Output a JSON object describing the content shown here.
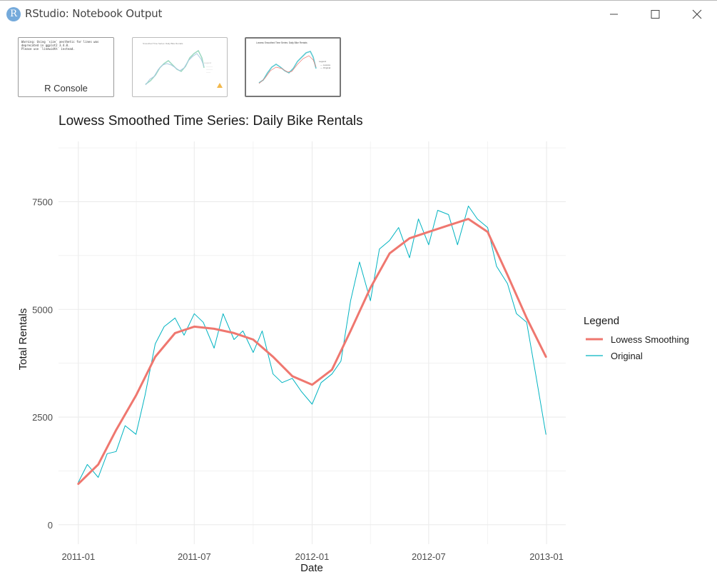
{
  "window": {
    "app_icon_letter": "R",
    "title": "RStudio: Notebook Output"
  },
  "thumbnails": [
    {
      "kind": "console",
      "label": "R Console",
      "text": "Warning: Using `size` aesthetic for lines was\ndeprecated in ggplot2 3.4.0.\nPlease use `linewidth` instead."
    },
    {
      "kind": "plot",
      "title": "Smoothed Time Series: Daily Bike Rentals",
      "warning_icon": "warning-icon"
    },
    {
      "kind": "plot",
      "title": "Lowess Smoothed Time Series: Daily Bike Rentals",
      "selected": true
    }
  ],
  "colors": {
    "original": "#00b3c1",
    "lowess": "#ef776f",
    "grid": "#ebebeb",
    "text": "#1a1a1a",
    "tick": "#4d4d4d"
  },
  "chart_data": {
    "type": "line",
    "title": "Lowess Smoothed Time Series: Daily Bike Rentals",
    "xlabel": "Date",
    "ylabel": "Total Rentals",
    "x_ticks": [
      "2011-01",
      "2011-07",
      "2012-01",
      "2012-07",
      "2013-01"
    ],
    "x_tick_dates": [
      "2011-01-01",
      "2011-07-01",
      "2012-01-01",
      "2012-07-01",
      "2013-01-01"
    ],
    "xlim": [
      "2010-12-01",
      "2013-01-31"
    ],
    "y_ticks": [
      0,
      2500,
      5000,
      7500
    ],
    "ylim": [
      -450,
      8900
    ],
    "grid": true,
    "legend": {
      "title": "Legend",
      "position": "right",
      "entries": [
        "Lowess Smoothing",
        "Original"
      ]
    },
    "series": [
      {
        "name": "Lowess Smoothing",
        "color": "#ef776f",
        "x": [
          "2011-01-01",
          "2011-02-01",
          "2011-03-01",
          "2011-04-01",
          "2011-05-01",
          "2011-06-01",
          "2011-07-01",
          "2011-08-01",
          "2011-09-01",
          "2011-10-01",
          "2011-11-01",
          "2011-12-01",
          "2012-01-01",
          "2012-02-01",
          "2012-03-01",
          "2012-04-01",
          "2012-05-01",
          "2012-06-01",
          "2012-07-01",
          "2012-08-01",
          "2012-09-01",
          "2012-10-01",
          "2012-11-01",
          "2012-12-01",
          "2012-12-31"
        ],
        "values": [
          950,
          1400,
          2200,
          3000,
          3900,
          4450,
          4600,
          4550,
          4450,
          4300,
          3900,
          3450,
          3250,
          3600,
          4500,
          5500,
          6300,
          6650,
          6800,
          6950,
          7100,
          6800,
          5800,
          4800,
          3900
        ]
      },
      {
        "name": "Original",
        "color": "#00b3c1",
        "x": [
          "2011-01-01",
          "2011-01-15",
          "2011-02-01",
          "2011-02-15",
          "2011-03-01",
          "2011-03-15",
          "2011-04-01",
          "2011-04-15",
          "2011-05-01",
          "2011-05-15",
          "2011-06-01",
          "2011-06-15",
          "2011-07-01",
          "2011-07-15",
          "2011-08-01",
          "2011-08-15",
          "2011-09-01",
          "2011-09-15",
          "2011-10-01",
          "2011-10-15",
          "2011-11-01",
          "2011-11-15",
          "2011-12-01",
          "2011-12-15",
          "2012-01-01",
          "2012-01-15",
          "2012-02-01",
          "2012-02-15",
          "2012-03-01",
          "2012-03-15",
          "2012-04-01",
          "2012-04-15",
          "2012-05-01",
          "2012-05-15",
          "2012-06-01",
          "2012-06-15",
          "2012-07-01",
          "2012-07-15",
          "2012-08-01",
          "2012-08-15",
          "2012-09-01",
          "2012-09-15",
          "2012-10-01",
          "2012-10-15",
          "2012-11-01",
          "2012-11-15",
          "2012-12-01",
          "2012-12-15",
          "2012-12-31"
        ],
        "values": [
          985,
          1400,
          1100,
          1650,
          1700,
          2300,
          2100,
          3000,
          4200,
          4600,
          4800,
          4400,
          4900,
          4700,
          4100,
          4900,
          4300,
          4500,
          4000,
          4500,
          3500,
          3300,
          3400,
          3100,
          2800,
          3300,
          3500,
          3800,
          5200,
          6100,
          5200,
          6400,
          6600,
          6900,
          6200,
          7100,
          6500,
          7300,
          7200,
          6500,
          7400,
          7100,
          6900,
          6000,
          5600,
          4900,
          4700,
          3500,
          2100
        ]
      }
    ]
  }
}
